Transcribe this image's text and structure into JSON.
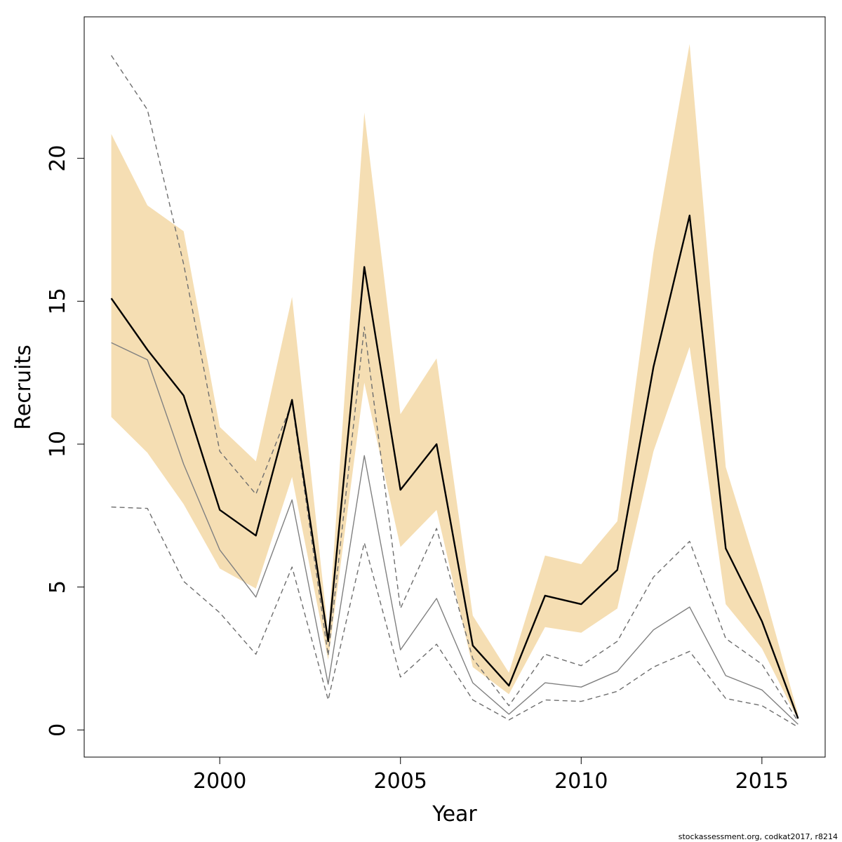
{
  "chart_data": {
    "type": "line",
    "xlabel": "Year",
    "ylabel": "Recruits",
    "xlim": [
      1996.25,
      2016.75
    ],
    "ylim": [
      -0.95,
      24.95
    ],
    "x_ticks": [
      2000,
      2005,
      2010,
      2015
    ],
    "y_ticks": [
      0,
      5,
      10,
      15,
      20
    ],
    "x": [
      1997,
      1998,
      1999,
      2000,
      2001,
      2002,
      2003,
      2004,
      2005,
      2006,
      2007,
      2008,
      2009,
      2010,
      2011,
      2012,
      2013,
      2014,
      2015,
      2016
    ],
    "band": {
      "lower": [
        10.95,
        9.7,
        7.9,
        5.65,
        4.95,
        8.85,
        2.45,
        12.15,
        6.4,
        7.7,
        2.2,
        1.25,
        3.6,
        3.4,
        4.25,
        9.75,
        13.4,
        4.4,
        2.85,
        0.35
      ],
      "upper": [
        20.85,
        18.35,
        17.45,
        10.6,
        9.4,
        15.15,
        3.4,
        21.6,
        11.05,
        13.0,
        4.0,
        2.0,
        6.1,
        5.8,
        7.3,
        16.7,
        24.0,
        9.2,
        5.1,
        0.55
      ],
      "color": "#f5deb3"
    },
    "series": [
      {
        "values": [
          15.1,
          13.3,
          11.7,
          7.7,
          6.8,
          11.55,
          3.1,
          16.2,
          8.4,
          10.0,
          2.95,
          1.55,
          4.7,
          4.4,
          5.6,
          12.7,
          18.0,
          6.35,
          3.8,
          0.4
        ],
        "color": "#000000",
        "style": "solid"
      },
      {
        "values": [
          13.55,
          12.95,
          9.3,
          6.3,
          4.65,
          8.05,
          1.6,
          9.6,
          2.8,
          4.6,
          1.65,
          0.55,
          1.65,
          1.5,
          2.05,
          3.5,
          4.3,
          1.9,
          1.4,
          0.2
        ],
        "color": "#808080",
        "style": "solid"
      },
      {
        "values": [
          23.6,
          21.7,
          16.3,
          9.75,
          8.25,
          11.45,
          2.6,
          14.1,
          4.25,
          7.05,
          2.5,
          0.85,
          2.65,
          2.25,
          3.1,
          5.35,
          6.6,
          3.2,
          2.3,
          0.3
        ],
        "color": "#6e6e6e",
        "style": "dashed"
      },
      {
        "values": [
          7.8,
          7.75,
          5.2,
          4.1,
          2.65,
          5.7,
          1.05,
          6.55,
          1.85,
          3.0,
          1.05,
          0.35,
          1.05,
          1.0,
          1.35,
          2.2,
          2.75,
          1.1,
          0.85,
          0.1
        ],
        "color": "#6e6e6e",
        "style": "dashed"
      }
    ]
  },
  "credit": "stockassessment.org, codkat2017, r8214"
}
